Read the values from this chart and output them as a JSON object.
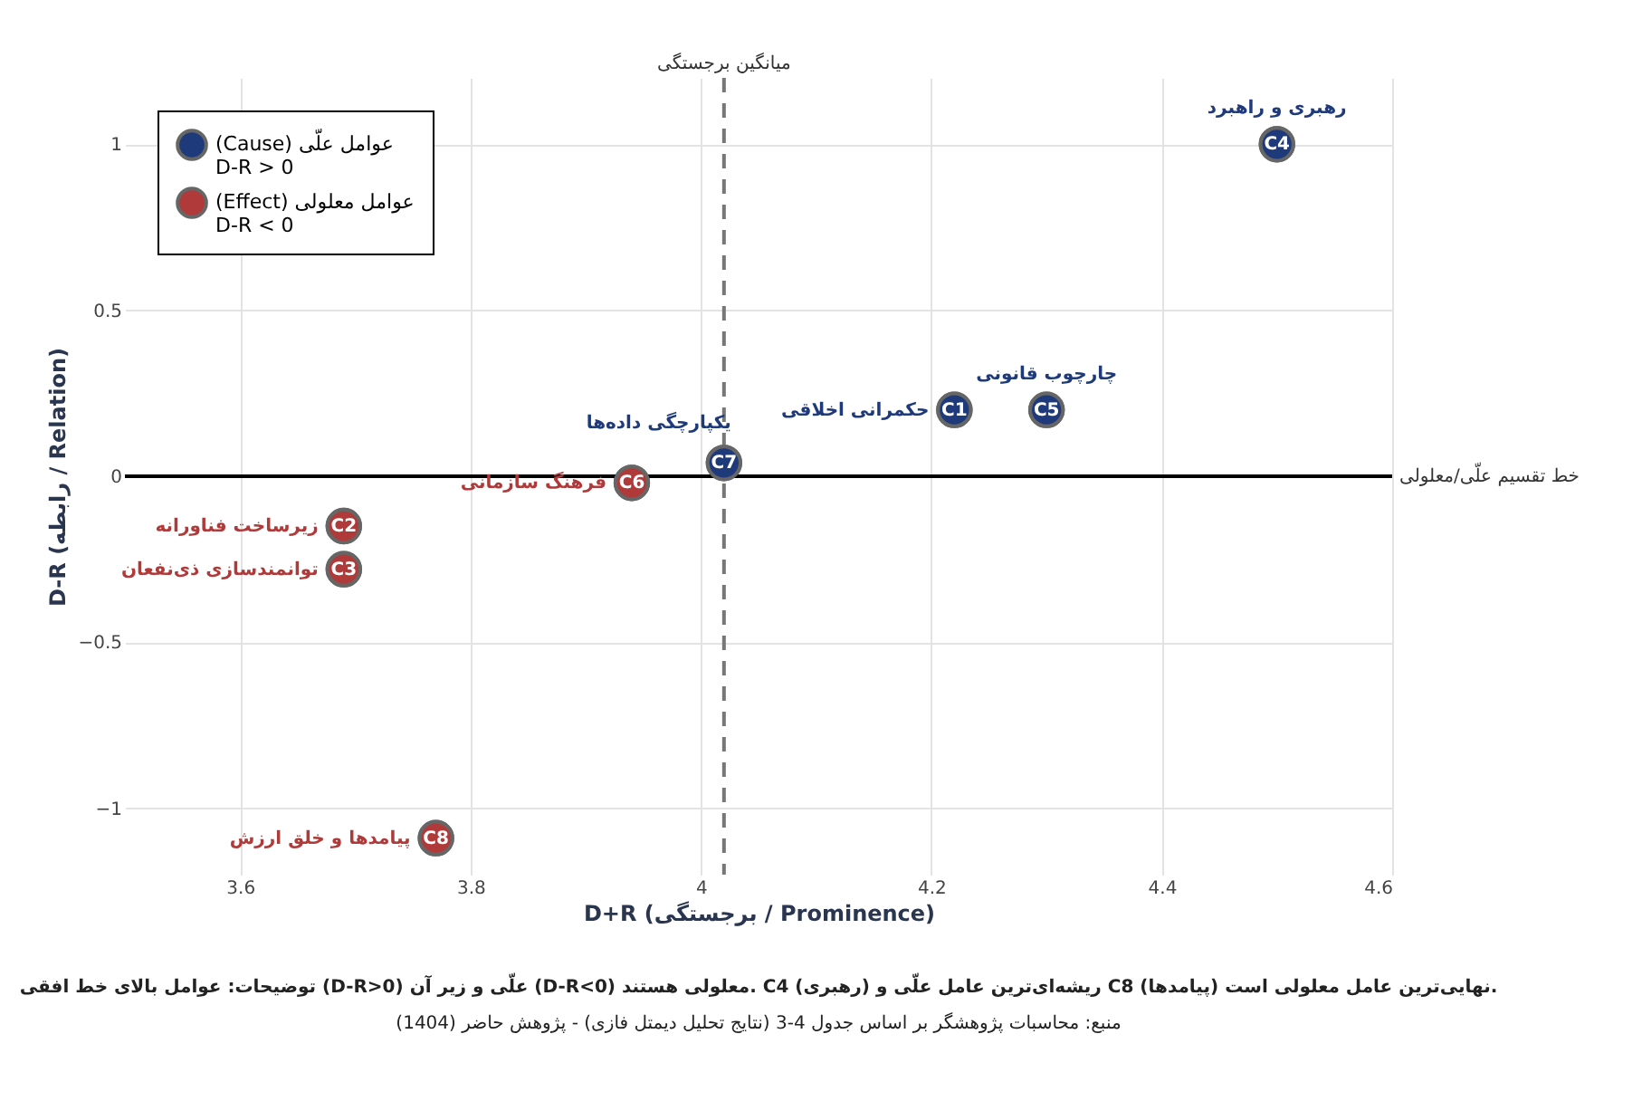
{
  "chart_data": {
    "type": "scatter",
    "xlabel": "D+R (برجستگی / Prominence)",
    "ylabel": "D-R (رابطه / Relation)",
    "series": [
      {
        "name": "(Cause) عوامل علّی\nD-R > 0",
        "color": "#1f3a7a",
        "x": [
          4.5,
          4.3,
          4.22,
          4.02
        ],
        "values": [
          1,
          0.2,
          0.2,
          0.04
        ]
      },
      {
        "name": "(Effect) عوامل معلولی\nD-R < 0",
        "color": "#b03a3a",
        "x": [
          3.94,
          3.69,
          3.69,
          3.77
        ],
        "values": [
          -0.02,
          -0.15,
          -0.28,
          -1.09
        ]
      }
    ],
    "annotations": [
      {
        "text": "C4",
        "x": 4.5,
        "y": 1
      },
      {
        "text": "C5",
        "x": 4.3,
        "y": 0.2
      },
      {
        "text": "C1",
        "x": 4.22,
        "y": 0.2
      },
      {
        "text": "C7",
        "x": 4.02,
        "y": 0.04
      },
      {
        "text": "C6",
        "x": 3.94,
        "y": -0.02
      },
      {
        "text": "C2",
        "x": 3.69,
        "y": -0.15
      },
      {
        "text": "C3",
        "x": 3.69,
        "y": -0.28
      },
      {
        "text": "C8",
        "x": 3.77,
        "y": -1.09
      },
      {
        "text": "رهبری و راهبرد",
        "x": 4.5,
        "y": 1
      },
      {
        "text": "چارچوب قانونی",
        "x": 4.3,
        "y": 0.2
      },
      {
        "text": "حکمرانی اخلاقی",
        "x": 4.22,
        "y": 0.2
      },
      {
        "text": "یکپارچگی داده‌ها",
        "x": 4.02,
        "y": 0.04
      },
      {
        "text": "فرهنگ سازمانی",
        "x": 3.94,
        "y": -0.02
      },
      {
        "text": "زیرساخت فناورانه",
        "x": 3.69,
        "y": -0.15
      },
      {
        "text": "توانمندسازی ذی‌نفعان",
        "x": 3.69,
        "y": -0.28
      },
      {
        "text": "پیامدها و خلق ارزش",
        "x": 3.77,
        "y": -1.09
      },
      "توضیحات: عوامل بالای خط افقی (D-R>0) علّی و زیر آن (D-R<0) معلولی هستند. C4 (رهبری) ریشه‌ای‌ترین عامل علّی و C8 (پیامدها) نهایی‌ترین عامل معلولی است.",
      "منبع: محاسبات پژوهشگر بر اساس جدول 4-3 (نتایج تحلیل دیمتل فازی) - پژوهش حاضر (1404)"
    ],
    "ref_lines": [
      {
        "axis": "x",
        "value": 4.02,
        "label": "میانگین برجستگی",
        "color": "#777777",
        "line_style": "dashed"
      },
      {
        "axis": "y",
        "value": 0,
        "label": "خط تقسیم علّی/معلولی",
        "color": "#000000",
        "line_style": "solid"
      }
    ],
    "xlim": [
      3.5,
      4.6
    ],
    "ylim": [
      -1.2,
      1.2
    ],
    "xticks": [
      3.6,
      3.8,
      4,
      4.2,
      4.4,
      4.6
    ],
    "yticks": [
      -1,
      -0.5,
      0,
      0.5,
      1
    ],
    "grid": true,
    "legend": "top left",
    "marker": "circle"
  }
}
